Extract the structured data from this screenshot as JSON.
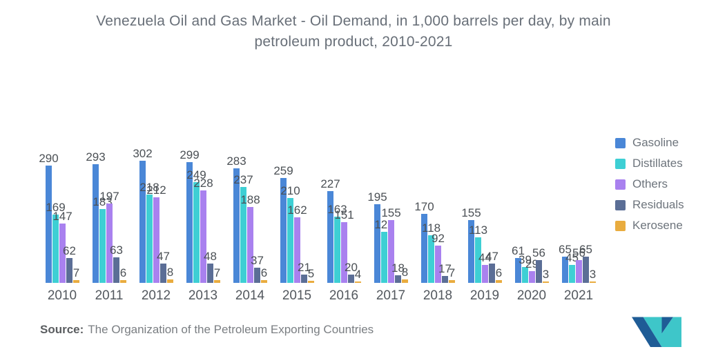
{
  "title": "Venezuela Oil and Gas Market - Oil Demand, in 1,000 barrels per day, by main petroleum product, 2010-2021",
  "source": {
    "label": "Source:",
    "text": "The Organization of the Petroleum Exporting Countries"
  },
  "logo": {
    "name": "mordor-intelligence-logo",
    "navy": "#1F5C96",
    "teal": "#3EC6C9"
  },
  "chart_data": {
    "type": "bar",
    "title": "Venezuela Oil and Gas Market - Oil Demand, in 1,000 barrels per day, by main petroleum product, 2010-2021",
    "categories": [
      "2010",
      "2011",
      "2012",
      "2013",
      "2014",
      "2015",
      "2016",
      "2017",
      "2018",
      "2019",
      "2020",
      "2021"
    ],
    "series": [
      {
        "name": "Gasoline",
        "color": "#4A87D7",
        "values": [
          290,
          293,
          302,
          299,
          283,
          259,
          227,
          195,
          170,
          155,
          61,
          65
        ]
      },
      {
        "name": "Distillates",
        "color": "#3ECFD4",
        "values": [
          169,
          183,
          218,
          249,
          237,
          210,
          163,
          127,
          118,
          113,
          39,
          45
        ]
      },
      {
        "name": "Others",
        "color": "#A981EF",
        "values": [
          147,
          197,
          212,
          228,
          188,
          162,
          151,
          155,
          92,
          44,
          29,
          56
        ]
      },
      {
        "name": "Residuals",
        "color": "#5B6E96",
        "values": [
          62,
          63,
          47,
          48,
          37,
          21,
          20,
          18,
          17,
          47,
          56,
          65
        ]
      },
      {
        "name": "Kerosene",
        "color": "#E9AC3F",
        "values": [
          7,
          6,
          8,
          7,
          6,
          5,
          4,
          8,
          7,
          6,
          3,
          3
        ]
      }
    ],
    "xlabel": "",
    "ylabel": "",
    "ylim": [
      0,
      320
    ],
    "grid": false,
    "legend_position": "right",
    "value_labels": true
  }
}
